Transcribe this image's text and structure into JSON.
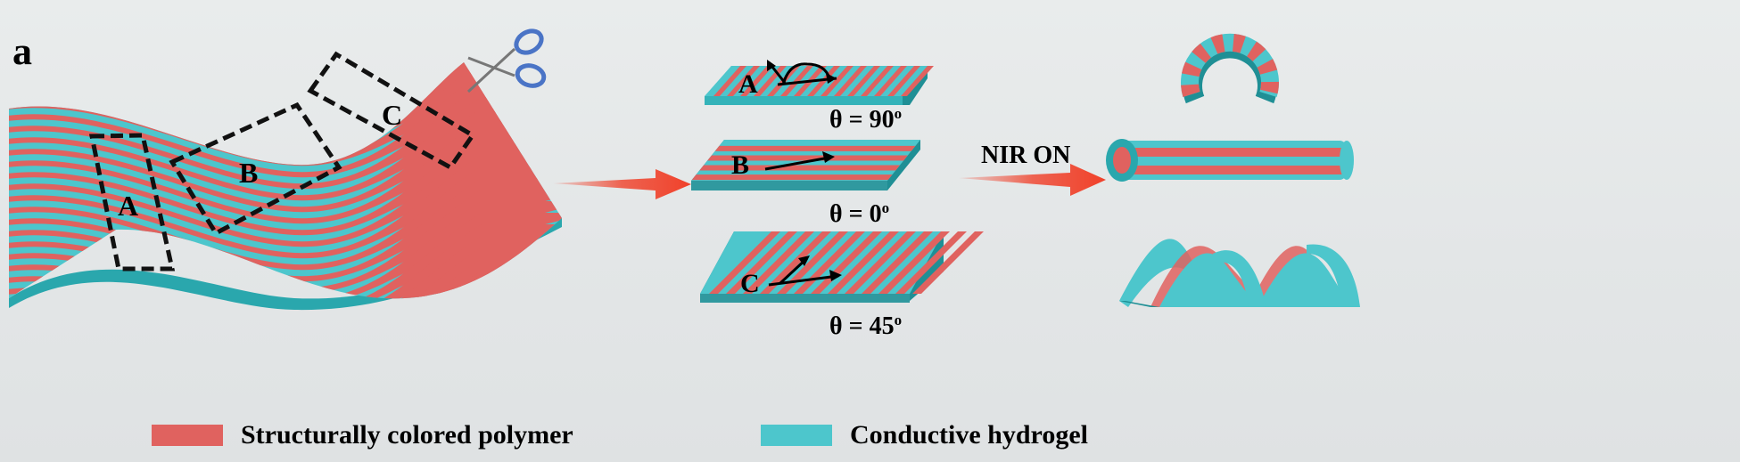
{
  "panel_label": "a",
  "region_labels": [
    "A",
    "B",
    "C"
  ],
  "strips": [
    {
      "label": "A",
      "angle": "θ = 90",
      "sup": "o"
    },
    {
      "label": "B",
      "angle": "θ = 0",
      "sup": "o"
    },
    {
      "label": "C",
      "angle": "θ = 45",
      "sup": "o"
    }
  ],
  "stimulus_label": "NIR ON",
  "legend": [
    {
      "label": "Structurally colored polymer",
      "color": "#e0625f"
    },
    {
      "label": "Conductive hydrogel",
      "color": "#4dc6cc"
    }
  ],
  "colors": {
    "polymer": "#e0625f",
    "hydrogel": "#4dc6cc",
    "edge": "#2aa7ad",
    "arrow": "#f0412a"
  }
}
